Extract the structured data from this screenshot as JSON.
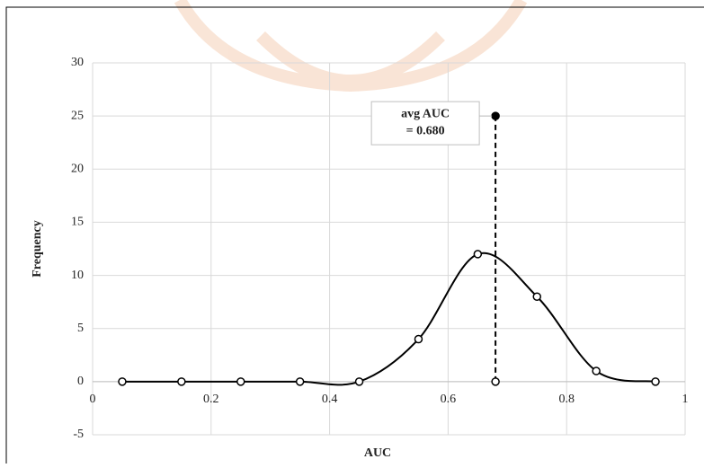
{
  "chart_data": {
    "type": "line",
    "x_label": "AUC",
    "y_label": "Frequency",
    "xlim": [
      0,
      1
    ],
    "xticks": [
      0,
      0.2,
      0.4,
      0.6,
      0.8,
      1
    ],
    "ylim": [
      -5,
      30
    ],
    "yticks": [
      -5,
      0,
      5,
      10,
      15,
      20,
      25,
      30
    ],
    "grid": true,
    "smooth": true,
    "series": [
      {
        "color": "#000000",
        "x": [
          0.05,
          0.15,
          0.25,
          0.35,
          0.45,
          0.55,
          0.65,
          0.75,
          0.85,
          0.95
        ],
        "values": [
          0,
          0,
          0,
          0,
          0,
          4,
          12,
          8,
          1,
          0
        ]
      },
      {
        "color": "#000000",
        "dashed": true,
        "x": [
          0.68,
          0.68
        ],
        "values": [
          0,
          25
        ]
      }
    ],
    "annotation": {
      "lines": [
        "avg AUC",
        "= 0.680"
      ]
    }
  }
}
